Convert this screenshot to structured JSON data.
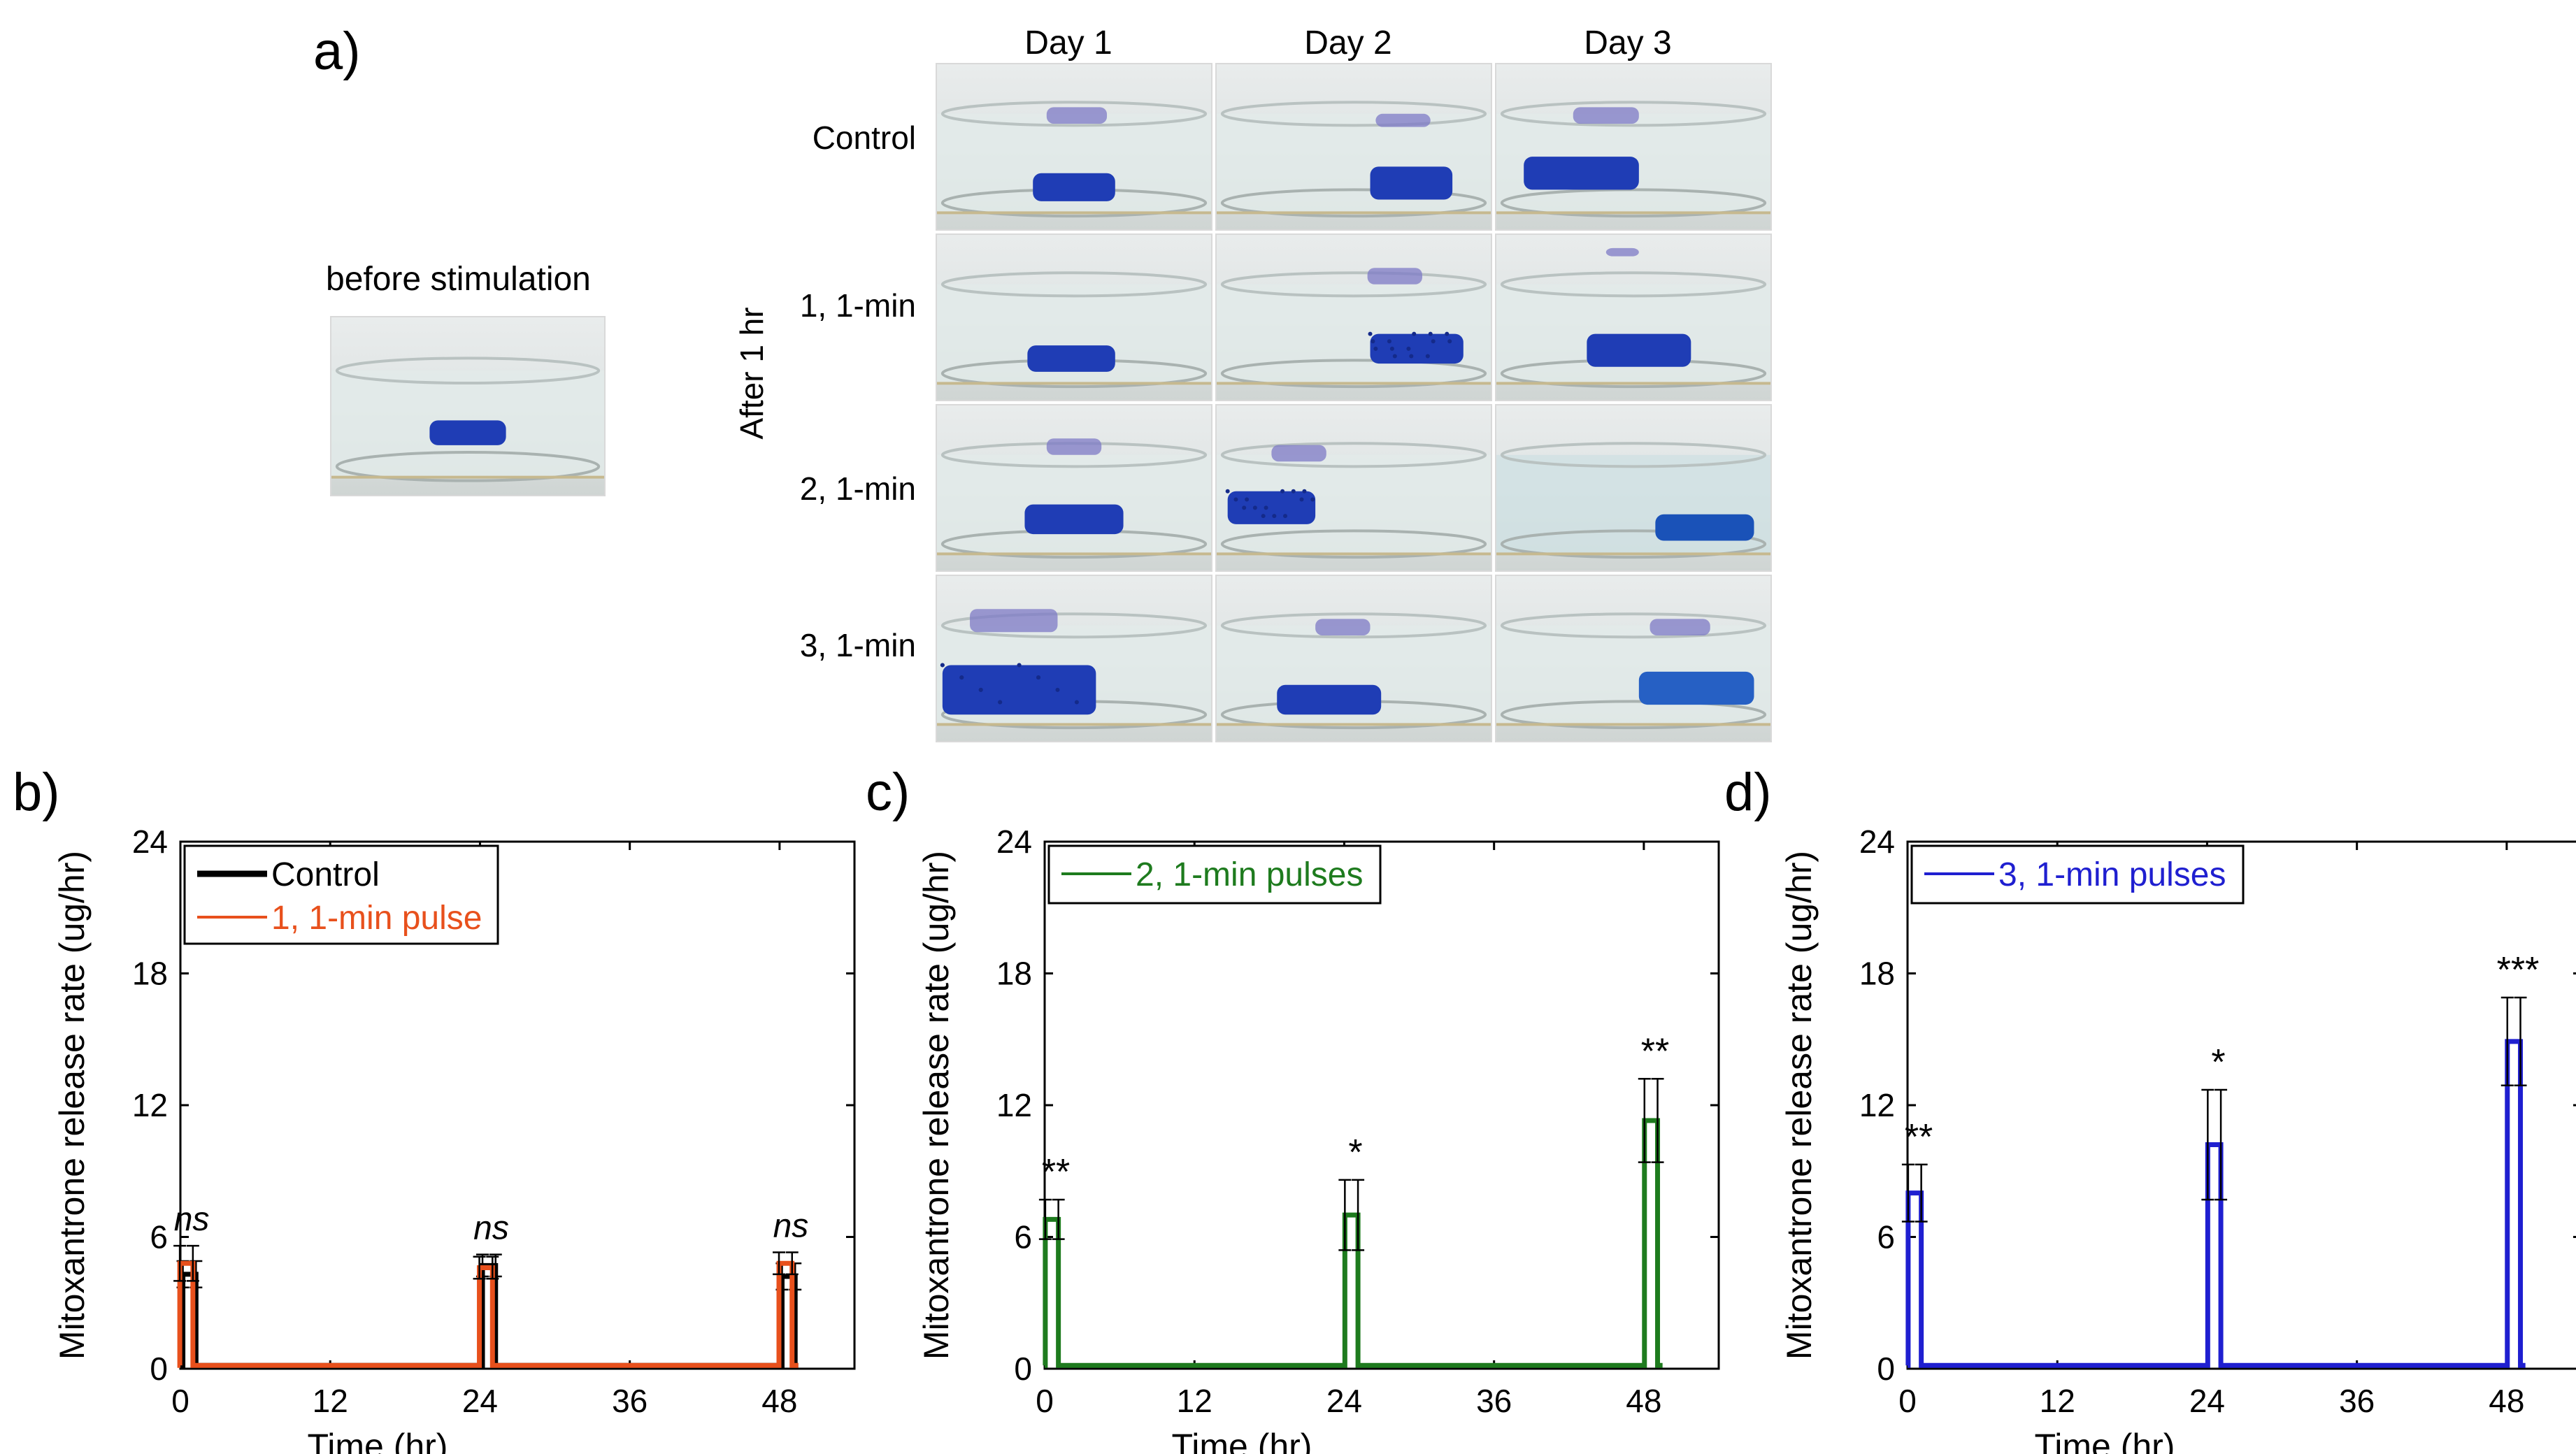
{
  "panel_a": {
    "letter": "a)",
    "before_label": "before stimulation",
    "side_label": "After 1 hr",
    "days": [
      "Day 1",
      "Day 2",
      "Day 3"
    ],
    "rows": [
      "Control",
      "1, 1-min",
      "2, 1-min",
      "3, 1-min"
    ]
  },
  "chart_data": [
    {
      "type": "bar",
      "panel_label": "b)",
      "title": "",
      "xlabel": "Time (hr)",
      "ylabel": "Mitoxantrone release rate (ug/hr)",
      "xlim": [
        0,
        54
      ],
      "ylim": [
        0,
        24
      ],
      "xticks": [
        "0",
        "12",
        "24",
        "36",
        "48"
      ],
      "yticks": [
        "0",
        "6",
        "12",
        "18",
        "24"
      ],
      "legend": [
        "Control",
        "1, 1-min pulse"
      ],
      "categories": [
        "0-1",
        "24-25",
        "48-49"
      ],
      "series": [
        {
          "name": "Control",
          "color": "#000000",
          "values": [
            4.3,
            4.7,
            4.2
          ],
          "errors": [
            0.6,
            0.5,
            0.6
          ]
        },
        {
          "name": "1, 1-min pulse",
          "color": "#e8501c",
          "values": [
            4.8,
            4.6,
            4.8
          ],
          "errors": [
            0.8,
            0.5,
            0.5
          ]
        }
      ],
      "significance": [
        "ns",
        "ns",
        "ns"
      ]
    },
    {
      "type": "bar",
      "panel_label": "c)",
      "title": "",
      "xlabel": "Time (hr)",
      "ylabel": "Mitoxantrone release rate (ug/hr)",
      "xlim": [
        0,
        54
      ],
      "ylim": [
        0,
        24
      ],
      "xticks": [
        "0",
        "12",
        "24",
        "36",
        "48"
      ],
      "yticks": [
        "0",
        "6",
        "12",
        "18",
        "24"
      ],
      "legend": [
        "2, 1-min pulses"
      ],
      "categories": [
        "0-1",
        "24-25",
        "48-49"
      ],
      "series": [
        {
          "name": "2, 1-min pulses",
          "color": "#1e7b1e",
          "values": [
            6.8,
            7.0,
            11.3
          ],
          "errors": [
            0.9,
            1.6,
            1.9
          ]
        }
      ],
      "significance": [
        "**",
        "*",
        "**"
      ]
    },
    {
      "type": "bar",
      "panel_label": "d)",
      "title": "",
      "xlabel": "Time (hr)",
      "ylabel": "Mitoxantrone release rate (ug/hr)",
      "xlim": [
        0,
        54
      ],
      "ylim": [
        0,
        24
      ],
      "xticks": [
        "0",
        "12",
        "24",
        "36",
        "48"
      ],
      "yticks": [
        "0",
        "6",
        "12",
        "18",
        "24"
      ],
      "legend": [
        "3, 1-min pulses"
      ],
      "categories": [
        "0-1",
        "24-25",
        "48-49"
      ],
      "series": [
        {
          "name": "3, 1-min pulses",
          "color": "#1f1fd0",
          "values": [
            8.0,
            10.2,
            14.9
          ],
          "errors": [
            1.3,
            2.5,
            2.0
          ]
        }
      ],
      "significance": [
        "**",
        "*",
        "***"
      ]
    }
  ]
}
